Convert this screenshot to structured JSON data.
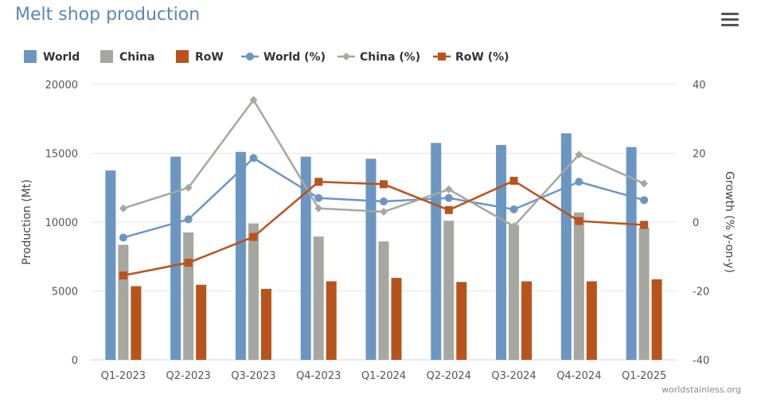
{
  "title": "Melt shop production",
  "credit": "worldstainless.org",
  "colors": {
    "world": "#6b96c2",
    "china": "#a6a7a0",
    "row": "#b8531b",
    "world_line": "#6b96c2",
    "china_line": "#a6a7a0",
    "row_line": "#b8531b"
  },
  "chart_data": {
    "type": "bar",
    "categories": [
      "Q1-2023",
      "Q2-2023",
      "Q3-2023",
      "Q4-2023",
      "Q1-2024",
      "Q2-2024",
      "Q3-2024",
      "Q4-2024",
      "Q1-2025"
    ],
    "ylabel": "Production (Mt)",
    "ylabel_right": "Growth (% y-on-y)",
    "ylim": [
      0,
      20000
    ],
    "yticks": [
      0,
      5000,
      10000,
      15000,
      20000
    ],
    "ylim_right": [
      -40,
      40
    ],
    "yticks_right": [
      -40,
      -20,
      0,
      20,
      40
    ],
    "legend_position": "top-left",
    "grid": true,
    "series": [
      {
        "name": "World",
        "type": "bar",
        "axis": "left",
        "values": [
          13750,
          14750,
          15100,
          14750,
          14600,
          15750,
          15600,
          16450,
          15450
        ]
      },
      {
        "name": "China",
        "type": "bar",
        "axis": "left",
        "values": [
          8350,
          9250,
          9900,
          8950,
          8600,
          10100,
          9800,
          10700,
          9600
        ]
      },
      {
        "name": "RoW",
        "type": "bar",
        "axis": "left",
        "values": [
          5350,
          5450,
          5150,
          5700,
          5950,
          5650,
          5700,
          5700,
          5850
        ]
      },
      {
        "name": "World (%)",
        "type": "line",
        "axis": "right",
        "marker": "circle",
        "values": [
          -4.5,
          0.8,
          18.6,
          7,
          6,
          7,
          3.7,
          11.7,
          6.4
        ]
      },
      {
        "name": "China (%)",
        "type": "line",
        "axis": "right",
        "marker": "diamond",
        "values": [
          4,
          10,
          35.5,
          4,
          3,
          9.5,
          -1.2,
          19.6,
          11.2
        ]
      },
      {
        "name": "RoW (%)",
        "type": "line",
        "axis": "right",
        "marker": "square",
        "values": [
          -15.5,
          -11.8,
          -4.3,
          11.7,
          11,
          3.5,
          12,
          0.3,
          -0.8
        ]
      }
    ]
  }
}
